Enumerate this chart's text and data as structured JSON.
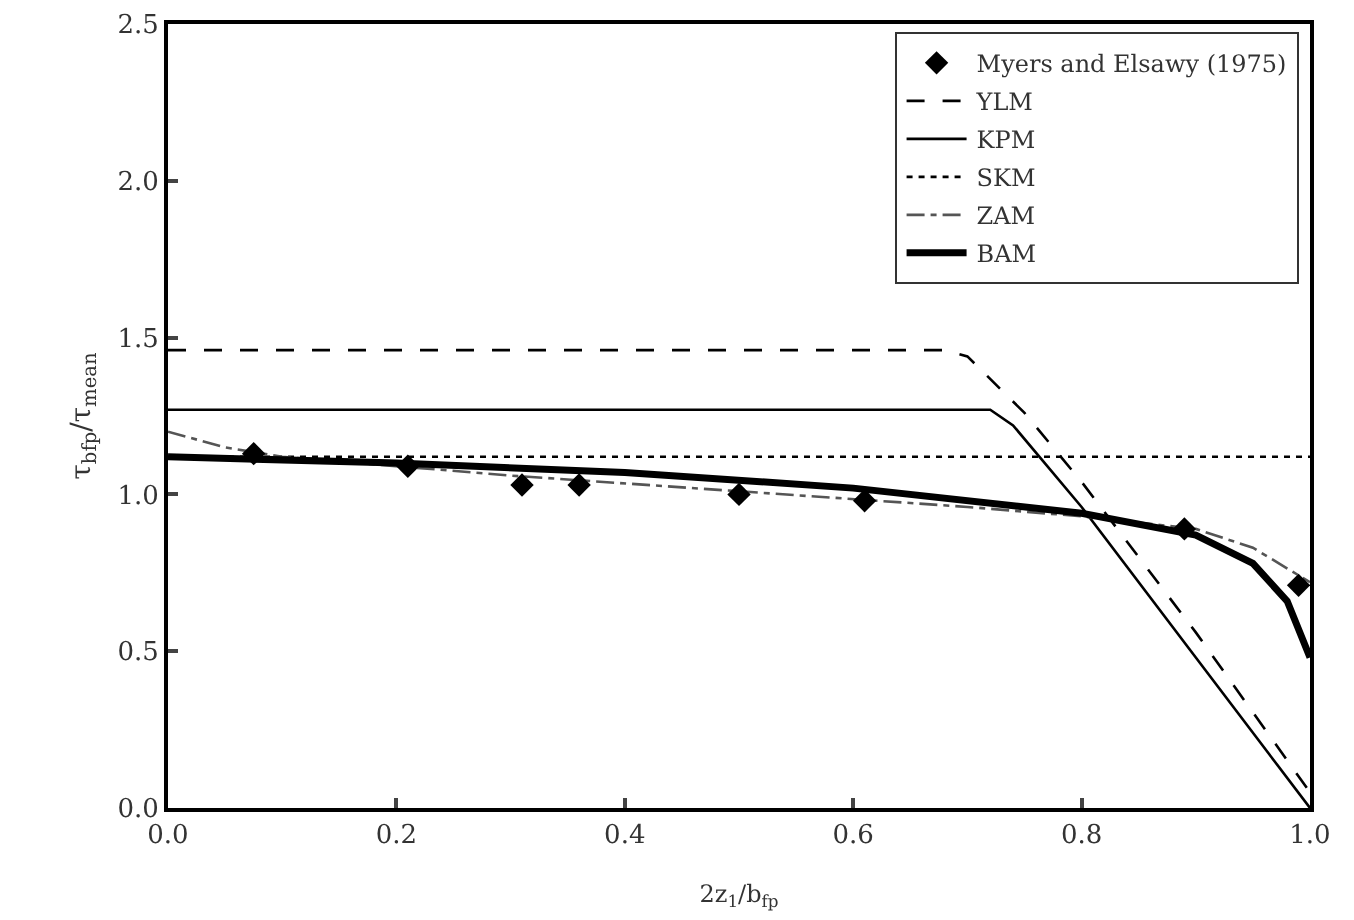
{
  "chart_data": {
    "type": "line",
    "xlabel": "2z$_{1}$/b$_{fp}$",
    "ylabel": "τ$_{bfp}$/τ$_{mean}$",
    "xlim": [
      0,
      1
    ],
    "xticks": [
      {
        "value": 0,
        "label": "0.0"
      },
      {
        "value": 0.2,
        "label": "0.2"
      },
      {
        "value": 0.4,
        "label": "0.4"
      },
      {
        "value": 0.6,
        "label": "0.6"
      },
      {
        "value": 0.8,
        "label": "0.8"
      },
      {
        "value": 1,
        "label": "1.0"
      }
    ],
    "ylim": [
      0,
      2.5
    ],
    "yticks": [
      {
        "value": 0,
        "label": "0.0"
      },
      {
        "value": 0.5,
        "label": "0.5"
      },
      {
        "value": 1,
        "label": "1.0"
      },
      {
        "value": 1.5,
        "label": "1.5"
      },
      {
        "value": 2,
        "label": "2.0"
      },
      {
        "value": 2.5,
        "label": "2.5"
      }
    ],
    "grid": false,
    "legend": "top right",
    "series": [
      {
        "name": "Myers and Elsawy (1975)",
        "type": "scatter",
        "marker": "diamond",
        "color": "#000000",
        "x": [
          0.075,
          0.21,
          0.31,
          0.36,
          0.5,
          0.61,
          0.89,
          0.99
        ],
        "values": [
          1.13,
          1.09,
          1.03,
          1.03,
          1.0,
          0.98,
          0.89,
          0.71
        ]
      },
      {
        "name": "YLM",
        "color": "#000000",
        "line_style": "dashed",
        "x": [
          0,
          0.68,
          0.7,
          0.75,
          0.8,
          0.9,
          1.0
        ],
        "values": [
          1.46,
          1.46,
          1.44,
          1.26,
          1.04,
          0.56,
          0.05
        ]
      },
      {
        "name": "KPM",
        "color": "#000000",
        "line_style": "solid",
        "x": [
          0,
          0.72,
          0.74,
          0.8,
          0.9,
          1.0
        ],
        "values": [
          1.27,
          1.27,
          1.22,
          0.96,
          0.48,
          0.0
        ]
      },
      {
        "name": "SKM",
        "color": "#000000",
        "line_style": "dotted",
        "x": [
          0,
          1
        ],
        "values": [
          1.12,
          1.12
        ]
      },
      {
        "name": "ZAM",
        "color": "#555555",
        "line_style": "dashdot",
        "x": [
          0,
          0.05,
          0.1,
          0.3,
          0.5,
          0.7,
          0.8,
          0.9,
          0.95,
          1.0
        ],
        "values": [
          1.2,
          1.15,
          1.12,
          1.06,
          1.01,
          0.96,
          0.93,
          0.89,
          0.83,
          0.72
        ]
      },
      {
        "name": "BAM",
        "color": "#000000",
        "line_style": "solid",
        "x": [
          0,
          0.2,
          0.4,
          0.6,
          0.8,
          0.9,
          0.95,
          0.98,
          1.0
        ],
        "values": [
          1.12,
          1.1,
          1.07,
          1.02,
          0.94,
          0.87,
          0.78,
          0.66,
          0.48
        ]
      }
    ]
  }
}
